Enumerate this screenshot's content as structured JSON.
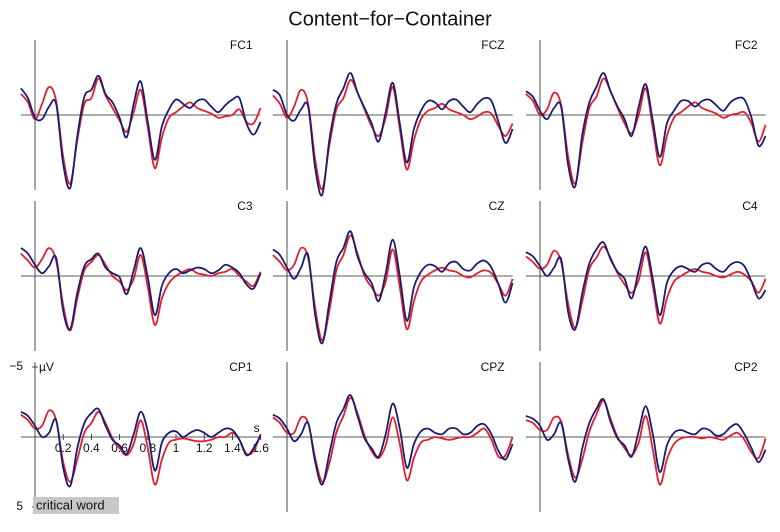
{
  "title": "Content−for−Container",
  "chart_data": [
    {
      "type": "line",
      "title": "FC1",
      "y_inverted": true,
      "xlim": [
        -0.1,
        1.6
      ],
      "ylim": [
        -5,
        5
      ],
      "x": [
        -0.1,
        -0.05,
        0,
        0.05,
        0.1,
        0.15,
        0.2,
        0.25,
        0.3,
        0.35,
        0.4,
        0.45,
        0.5,
        0.55,
        0.6,
        0.65,
        0.7,
        0.75,
        0.8,
        0.85,
        0.9,
        0.95,
        1.0,
        1.05,
        1.1,
        1.15,
        1.2,
        1.25,
        1.3,
        1.35,
        1.4,
        1.45,
        1.5,
        1.55,
        1.6
      ],
      "series": [
        {
          "color": "#e0202e",
          "values": [
            -1.5,
            -0.9,
            0.3,
            -0.8,
            -2.0,
            -1.0,
            3.0,
            4.9,
            1.8,
            -0.8,
            -1.2,
            -2.6,
            -1.4,
            -0.5,
            0.4,
            1.2,
            -0.2,
            -1.8,
            0.9,
            3.8,
            1.6,
            0.2,
            -0.2,
            -0.6,
            -0.9,
            -0.5,
            -0.3,
            -0.1,
            0.2,
            0.1,
            0.0,
            -0.4,
            0.5,
            0.6,
            -0.5
          ]
        },
        {
          "color": "#1c1c70",
          "values": [
            -1.9,
            -1.2,
            0.2,
            0.3,
            -0.6,
            -0.8,
            3.5,
            5.2,
            1.5,
            -1.3,
            -1.8,
            -2.8,
            -1.5,
            -0.9,
            0.2,
            1.6,
            -0.8,
            -2.4,
            0.5,
            3.2,
            0.8,
            -0.4,
            -1.1,
            -0.8,
            -0.5,
            -1.0,
            -1.1,
            -0.6,
            -0.2,
            -0.7,
            -1.1,
            -1.2,
            0.6,
            1.4,
            0.5
          ]
        }
      ]
    },
    {
      "type": "line",
      "title": "FCZ",
      "y_inverted": true,
      "xlim": [
        -0.1,
        1.6
      ],
      "ylim": [
        -5,
        5
      ],
      "x": [
        -0.1,
        -0.05,
        0,
        0.05,
        0.1,
        0.15,
        0.2,
        0.25,
        0.3,
        0.35,
        0.4,
        0.45,
        0.5,
        0.55,
        0.6,
        0.65,
        0.7,
        0.75,
        0.8,
        0.85,
        0.9,
        0.95,
        1.0,
        1.05,
        1.1,
        1.15,
        1.2,
        1.25,
        1.3,
        1.35,
        1.4,
        1.45,
        1.5,
        1.55,
        1.6
      ],
      "series": [
        {
          "color": "#e0202e",
          "values": [
            -1.4,
            -0.8,
            0.2,
            -0.6,
            -1.8,
            -0.8,
            3.2,
            5.3,
            2.2,
            -0.4,
            -1.2,
            -2.5,
            -1.6,
            -0.4,
            0.8,
            1.5,
            0.2,
            -2.0,
            1.0,
            3.9,
            1.8,
            0.3,
            -0.3,
            -0.5,
            -0.8,
            -0.4,
            -0.2,
            0.0,
            0.3,
            0.1,
            -0.2,
            -0.1,
            0.8,
            1.5,
            0.6
          ]
        },
        {
          "color": "#1c1c70",
          "values": [
            -1.8,
            -1.4,
            0.0,
            0.4,
            -0.4,
            -0.6,
            3.8,
            5.7,
            1.8,
            -0.8,
            -1.9,
            -3.0,
            -1.6,
            -0.5,
            0.6,
            1.9,
            -0.2,
            -2.3,
            0.6,
            3.4,
            1.0,
            -0.3,
            -1.0,
            -0.9,
            -0.4,
            -1.0,
            -1.1,
            -0.6,
            -0.2,
            -0.8,
            -1.2,
            -1.0,
            0.5,
            2.0,
            1.0
          ]
        }
      ]
    },
    {
      "type": "line",
      "title": "FC2",
      "y_inverted": true,
      "xlim": [
        -0.1,
        1.6
      ],
      "ylim": [
        -5,
        5
      ],
      "x": [
        -0.1,
        -0.05,
        0,
        0.05,
        0.1,
        0.15,
        0.2,
        0.25,
        0.3,
        0.35,
        0.4,
        0.45,
        0.5,
        0.55,
        0.6,
        0.65,
        0.7,
        0.75,
        0.8,
        0.85,
        0.9,
        0.95,
        1.0,
        1.05,
        1.1,
        1.15,
        1.2,
        1.25,
        1.3,
        1.35,
        1.4,
        1.45,
        1.5,
        1.55,
        1.6
      ],
      "series": [
        {
          "color": "#e0202e",
          "values": [
            -1.5,
            -1.0,
            0.0,
            -0.4,
            -1.6,
            -0.7,
            3.0,
            4.9,
            2.0,
            -0.5,
            -1.3,
            -2.6,
            -1.7,
            -0.5,
            0.6,
            1.3,
            0.0,
            -1.9,
            0.9,
            3.6,
            1.5,
            0.2,
            -0.2,
            -0.6,
            -0.9,
            -0.5,
            -0.3,
            -0.1,
            0.2,
            0.0,
            -0.1,
            -0.2,
            0.6,
            1.9,
            0.7
          ]
        },
        {
          "color": "#1c1c70",
          "values": [
            -1.7,
            -1.3,
            -0.3,
            0.3,
            -0.5,
            -0.6,
            3.6,
            5.1,
            1.4,
            -0.9,
            -2.0,
            -3.0,
            -1.7,
            -0.6,
            0.3,
            1.5,
            -0.6,
            -2.2,
            0.4,
            3.0,
            0.6,
            -0.3,
            -1.0,
            -1.0,
            -0.6,
            -1.0,
            -1.1,
            -0.7,
            -0.3,
            -0.9,
            -1.2,
            -1.1,
            0.2,
            2.2,
            1.5
          ]
        }
      ]
    },
    {
      "type": "line",
      "title": "C3",
      "y_inverted": true,
      "xlim": [
        -0.1,
        1.6
      ],
      "ylim": [
        -5,
        5
      ],
      "x": [
        -0.1,
        -0.05,
        0,
        0.05,
        0.1,
        0.15,
        0.2,
        0.25,
        0.3,
        0.35,
        0.4,
        0.45,
        0.5,
        0.55,
        0.6,
        0.65,
        0.7,
        0.75,
        0.8,
        0.85,
        0.9,
        0.95,
        1.0,
        1.05,
        1.1,
        1.15,
        1.2,
        1.25,
        1.3,
        1.35,
        1.4,
        1.45,
        1.5,
        1.55,
        1.6
      ],
      "series": [
        {
          "color": "#e0202e",
          "values": [
            -1.6,
            -1.1,
            -0.6,
            -1.2,
            -2.0,
            -1.1,
            2.1,
            3.9,
            1.6,
            -0.4,
            -1.0,
            -1.5,
            -0.8,
            0.0,
            0.4,
            1.0,
            0.2,
            -1.5,
            0.8,
            3.5,
            1.6,
            0.5,
            0.0,
            -0.3,
            -0.5,
            -0.2,
            -0.1,
            0.0,
            -0.2,
            -0.3,
            -0.5,
            0.0,
            0.4,
            0.7,
            -0.3
          ]
        },
        {
          "color": "#1c1c70",
          "values": [
            -2.0,
            -1.6,
            -0.8,
            -0.2,
            -0.7,
            -1.3,
            2.5,
            3.8,
            1.2,
            -0.7,
            -1.2,
            -1.6,
            -0.6,
            -0.2,
            0.1,
            1.3,
            -0.4,
            -2.0,
            0.1,
            2.8,
            0.7,
            -0.2,
            -0.5,
            -0.2,
            -0.4,
            -0.6,
            -0.5,
            -0.2,
            -0.4,
            -0.8,
            -0.6,
            -0.2,
            0.6,
            0.9,
            -0.2
          ]
        }
      ]
    },
    {
      "type": "line",
      "title": "CZ",
      "y_inverted": true,
      "xlim": [
        -0.1,
        1.6
      ],
      "ylim": [
        -5,
        5
      ],
      "x": [
        -0.1,
        -0.05,
        0,
        0.05,
        0.1,
        0.15,
        0.2,
        0.25,
        0.3,
        0.35,
        0.4,
        0.45,
        0.5,
        0.55,
        0.6,
        0.65,
        0.7,
        0.75,
        0.8,
        0.85,
        0.9,
        0.95,
        1.0,
        1.05,
        1.1,
        1.15,
        1.2,
        1.25,
        1.3,
        1.35,
        1.4,
        1.45,
        1.5,
        1.55,
        1.6
      ],
      "series": [
        {
          "color": "#e0202e",
          "values": [
            -1.5,
            -1.0,
            -0.4,
            -0.8,
            -2.0,
            -1.3,
            2.3,
            4.6,
            2.5,
            -0.4,
            -1.5,
            -2.9,
            -1.6,
            0.0,
            0.8,
            1.4,
            0.4,
            -1.9,
            0.8,
            3.8,
            1.8,
            0.4,
            -0.1,
            -0.4,
            -0.6,
            -0.4,
            -0.3,
            0.0,
            0.1,
            -0.2,
            -0.4,
            -0.2,
            0.6,
            1.4,
            0.2
          ]
        },
        {
          "color": "#1c1c70",
          "values": [
            -1.9,
            -1.5,
            -0.6,
            0.2,
            -0.6,
            -1.5,
            2.8,
            4.8,
            1.9,
            -1.0,
            -2.0,
            -3.2,
            -1.4,
            -0.2,
            0.5,
            1.8,
            -0.2,
            -2.6,
            0.0,
            3.2,
            0.8,
            -0.3,
            -0.8,
            -0.7,
            -0.3,
            -0.9,
            -1.0,
            -0.5,
            -0.4,
            -0.9,
            -1.1,
            -0.6,
            0.6,
            1.9,
            0.5
          ]
        }
      ]
    },
    {
      "type": "line",
      "title": "C4",
      "y_inverted": true,
      "xlim": [
        -0.1,
        1.6
      ],
      "ylim": [
        -5,
        5
      ],
      "x": [
        -0.1,
        -0.05,
        0,
        0.05,
        0.1,
        0.15,
        0.2,
        0.25,
        0.3,
        0.35,
        0.4,
        0.45,
        0.5,
        0.55,
        0.6,
        0.65,
        0.7,
        0.75,
        0.8,
        0.85,
        0.9,
        0.95,
        1.0,
        1.05,
        1.1,
        1.15,
        1.2,
        1.25,
        1.3,
        1.35,
        1.4,
        1.45,
        1.5,
        1.55,
        1.6
      ],
      "series": [
        {
          "color": "#e0202e",
          "values": [
            -1.4,
            -1.0,
            -0.5,
            -0.8,
            -1.8,
            -1.0,
            2.0,
            3.7,
            1.8,
            -0.5,
            -1.3,
            -2.1,
            -1.3,
            -0.2,
            0.6,
            1.2,
            0.3,
            -1.7,
            0.7,
            3.4,
            1.6,
            0.4,
            0.0,
            -0.3,
            -0.5,
            -0.3,
            -0.2,
            0.0,
            0.1,
            -0.1,
            -0.3,
            -0.1,
            0.4,
            1.2,
            0.2
          ]
        },
        {
          "color": "#1c1c70",
          "values": [
            -1.7,
            -1.4,
            -0.7,
            0.0,
            -0.6,
            -1.2,
            2.6,
            3.8,
            1.2,
            -0.9,
            -1.9,
            -2.4,
            -1.2,
            -0.3,
            0.2,
            1.6,
            -0.4,
            -2.1,
            0.2,
            2.8,
            0.5,
            -0.4,
            -0.7,
            -0.5,
            -0.3,
            -0.8,
            -0.9,
            -0.5,
            -0.3,
            -0.8,
            -1.0,
            -0.7,
            0.4,
            1.6,
            1.0
          ]
        }
      ]
    },
    {
      "type": "line",
      "title": "CP1",
      "y_inverted": true,
      "xlim": [
        -0.1,
        1.6
      ],
      "ylim": [
        -5,
        5
      ],
      "xlabel": "s",
      "ylabel": "µV",
      "annotation": "critical word",
      "xticks": [
        0.2,
        0.4,
        0.6,
        0.8,
        1.0,
        1.2,
        1.4,
        1.6
      ],
      "yticks": [
        {
          "value": -5,
          "label": "−5"
        },
        5
      ],
      "x": [
        -0.1,
        -0.05,
        0,
        0.05,
        0.1,
        0.15,
        0.2,
        0.25,
        0.3,
        0.35,
        0.4,
        0.45,
        0.5,
        0.55,
        0.6,
        0.65,
        0.7,
        0.75,
        0.8,
        0.85,
        0.9,
        0.95,
        1.0,
        1.05,
        1.1,
        1.15,
        1.2,
        1.25,
        1.3,
        1.35,
        1.4,
        1.45,
        1.5,
        1.55,
        1.6
      ],
      "series": [
        {
          "color": "#e0202e",
          "values": [
            -1.6,
            -1.2,
            -0.6,
            -0.8,
            -1.9,
            -1.2,
            1.8,
            3.2,
            1.6,
            -0.3,
            -1.0,
            -1.8,
            -1.0,
            0.1,
            0.8,
            1.3,
            0.5,
            -1.2,
            0.8,
            3.4,
            1.6,
            0.4,
            0.2,
            0.1,
            0.2,
            0.3,
            0.3,
            0.2,
            0.0,
            0.0,
            -0.3,
            0.2,
            1.2,
            1.0,
            -0.2
          ]
        },
        {
          "color": "#1c1c70",
          "values": [
            -1.8,
            -1.5,
            -0.8,
            0.0,
            -0.3,
            -1.2,
            2.2,
            3.5,
            0.8,
            -1.0,
            -1.7,
            -2.0,
            -0.8,
            0.2,
            0.6,
            1.2,
            -0.2,
            -1.8,
            -0.4,
            2.4,
            0.4,
            -0.3,
            -0.4,
            0.0,
            -0.3,
            -0.5,
            -0.3,
            0.0,
            -0.3,
            -0.6,
            -0.5,
            0.2,
            1.3,
            0.8,
            -0.1
          ]
        }
      ]
    },
    {
      "type": "line",
      "title": "CPZ",
      "y_inverted": true,
      "xlim": [
        -0.1,
        1.6
      ],
      "ylim": [
        -5,
        5
      ],
      "x": [
        -0.1,
        -0.05,
        0,
        0.05,
        0.1,
        0.15,
        0.2,
        0.25,
        0.3,
        0.35,
        0.4,
        0.45,
        0.5,
        0.55,
        0.6,
        0.65,
        0.7,
        0.75,
        0.8,
        0.85,
        0.9,
        0.95,
        1.0,
        1.05,
        1.1,
        1.15,
        1.2,
        1.25,
        1.3,
        1.35,
        1.4,
        1.45,
        1.5,
        1.55,
        1.6
      ],
      "series": [
        {
          "color": "#e0202e",
          "values": [
            -1.4,
            -1.0,
            -0.3,
            -0.3,
            -1.4,
            -1.0,
            1.5,
            3.2,
            1.9,
            -0.3,
            -1.5,
            -2.8,
            -1.7,
            -0.1,
            1.0,
            1.5,
            0.6,
            -1.4,
            0.5,
            3.1,
            1.5,
            0.4,
            0.2,
            0.0,
            0.1,
            0.2,
            0.1,
            0.0,
            0.0,
            -0.3,
            -0.6,
            0.2,
            1.4,
            1.3,
            0.0
          ]
        },
        {
          "color": "#1c1c70",
          "values": [
            -1.6,
            -1.3,
            -0.6,
            0.3,
            -0.2,
            -1.0,
            1.8,
            3.4,
            1.2,
            -1.0,
            -2.0,
            -3.0,
            -1.5,
            0.1,
            0.8,
            1.4,
            -0.2,
            -2.4,
            -0.6,
            2.2,
            0.5,
            -0.4,
            -0.6,
            -0.3,
            -0.2,
            -0.6,
            -0.6,
            -0.2,
            -0.3,
            -0.8,
            -0.9,
            -0.2,
            1.0,
            1.6,
            0.5
          ]
        }
      ]
    },
    {
      "type": "line",
      "title": "CP2",
      "y_inverted": true,
      "xlim": [
        -0.1,
        1.6
      ],
      "ylim": [
        -5,
        5
      ],
      "x": [
        -0.1,
        -0.05,
        0,
        0.05,
        0.1,
        0.15,
        0.2,
        0.25,
        0.3,
        0.35,
        0.4,
        0.45,
        0.5,
        0.55,
        0.6,
        0.65,
        0.7,
        0.75,
        0.8,
        0.85,
        0.9,
        0.95,
        1.0,
        1.05,
        1.1,
        1.15,
        1.2,
        1.25,
        1.3,
        1.35,
        1.4,
        1.45,
        1.5,
        1.55,
        1.6
      ],
      "series": [
        {
          "color": "#e0202e",
          "values": [
            -1.2,
            -1.0,
            -0.5,
            -0.5,
            -1.4,
            -1.1,
            1.3,
            2.9,
            1.6,
            -0.4,
            -1.6,
            -2.6,
            -1.3,
            0.0,
            0.8,
            1.3,
            0.4,
            -1.5,
            0.9,
            3.4,
            1.6,
            0.5,
            0.1,
            0.0,
            0.0,
            0.1,
            0.0,
            0.1,
            0.2,
            -0.1,
            -0.3,
            0.2,
            1.1,
            1.5,
            0.1
          ]
        },
        {
          "color": "#1c1c70",
          "values": [
            -1.5,
            -1.3,
            -0.8,
            0.2,
            -0.2,
            -1.0,
            1.6,
            3.2,
            0.8,
            -1.0,
            -2.0,
            -2.7,
            -1.1,
            0.1,
            0.6,
            1.4,
            -0.4,
            -2.2,
            -0.2,
            2.5,
            0.6,
            -0.3,
            -0.5,
            -0.3,
            -0.2,
            -0.6,
            -0.5,
            -0.1,
            -0.2,
            -0.7,
            -0.9,
            -0.2,
            0.8,
            1.8,
            0.9
          ]
        }
      ]
    }
  ]
}
